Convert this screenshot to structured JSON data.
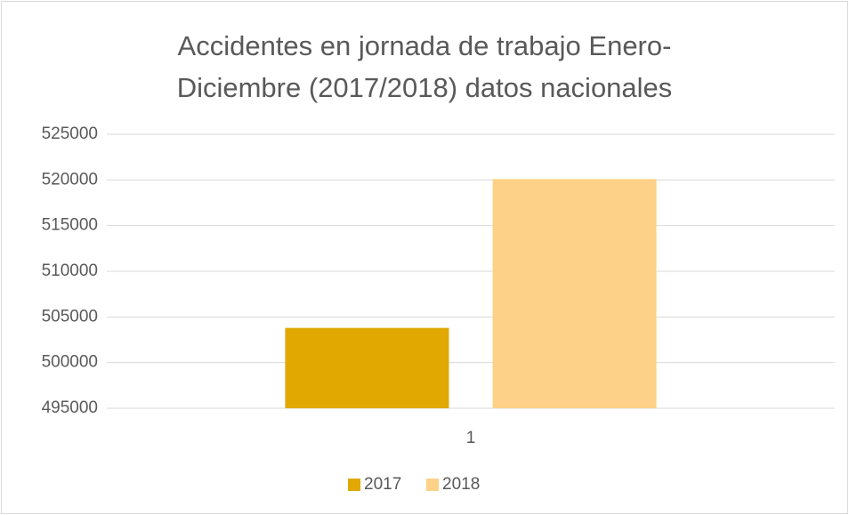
{
  "chart_data": {
    "type": "bar",
    "title": "Accidentes en jornada de trabajo Enero-Diciembre (2017/2018) datos nacionales",
    "categories": [
      "1"
    ],
    "series": [
      {
        "name": "2017",
        "color": "#e0a800",
        "values": [
          503800
        ]
      },
      {
        "name": "2018",
        "color": "#fdd187",
        "values": [
          520100
        ]
      }
    ],
    "ylim": [
      495000,
      525000
    ],
    "yticks": [
      495000,
      500000,
      505000,
      510000,
      515000,
      520000,
      525000
    ],
    "grid": true,
    "legend": "bottom"
  }
}
